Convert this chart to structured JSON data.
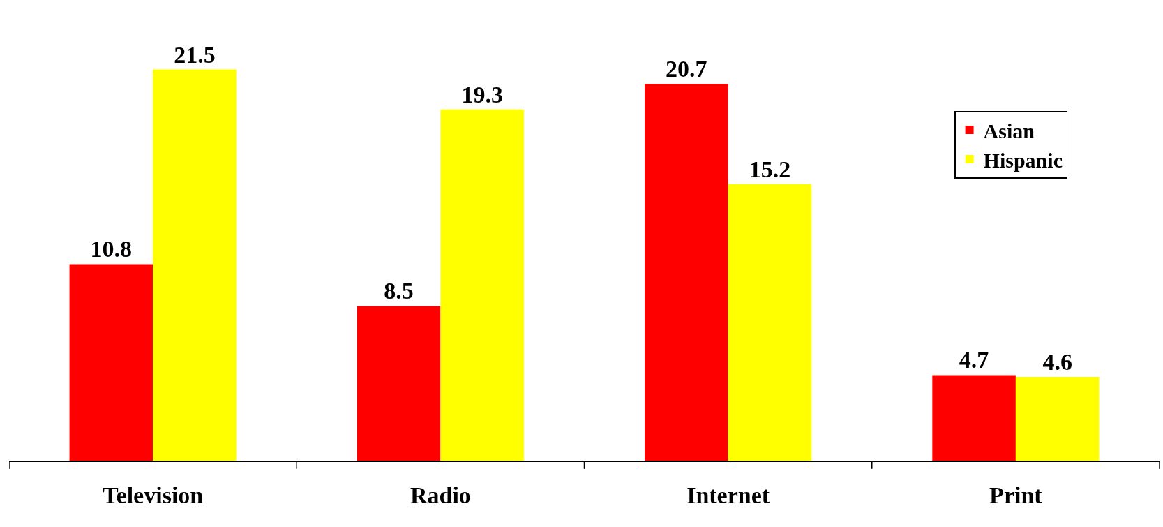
{
  "chart_data": {
    "type": "bar",
    "categories": [
      "Television",
      "Radio",
      "Internet",
      "Print"
    ],
    "series": [
      {
        "name": "Asian",
        "color": "#ff0000",
        "values": [
          10.8,
          8.5,
          20.7,
          4.7
        ]
      },
      {
        "name": "Hispanic",
        "color": "#ffff00",
        "values": [
          21.5,
          19.3,
          15.2,
          4.6
        ]
      }
    ],
    "data_labels": true,
    "legend": "top right"
  }
}
